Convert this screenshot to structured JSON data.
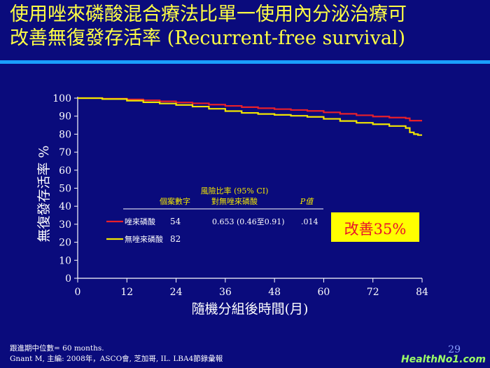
{
  "slide": {
    "title_line1": "使用唑來磷酸混合療法比單一使用內分泌治療可",
    "title_line2": "改善無復發存活率 (Recurrent-free survival)",
    "footnote1": "跟進期中位數= 60 months.",
    "footnote2": "Gnant M, 主編: 2008年，ASCO會, 芝加哥, IL. LBA4節錄彙報",
    "page_number": "29",
    "watermark": "HealthNo1.com"
  },
  "chart_data": {
    "type": "line",
    "title": "",
    "xlabel": "隨機分組後時間(月)",
    "ylabel": "無復發存活率 %",
    "xlim": [
      0,
      84
    ],
    "ylim": [
      0,
      100
    ],
    "xticks": [
      "0",
      "12",
      "24",
      "36",
      "48",
      "60",
      "72",
      "84"
    ],
    "yticks": [
      "0",
      "10",
      "20",
      "30",
      "40",
      "50",
      "60",
      "70",
      "80",
      "90",
      "100"
    ],
    "grid": false,
    "series": [
      {
        "name": "唑來磷酸",
        "color": "#e8202a",
        "x": [
          0,
          6,
          12,
          16,
          20,
          24,
          28,
          32,
          36,
          40,
          44,
          48,
          52,
          56,
          60,
          64,
          68,
          72,
          76,
          80,
          81,
          84
        ],
        "y": [
          100,
          99.7,
          99.3,
          98.8,
          98.2,
          97.6,
          97.1,
          96.4,
          95.7,
          95,
          94.4,
          93.9,
          93.4,
          92.9,
          92.1,
          91.3,
          90.5,
          89.8,
          89.2,
          88.8,
          87.5,
          87.5
        ]
      },
      {
        "name": "無唑來磷酸",
        "color": "#f2e600",
        "x": [
          0,
          6,
          12,
          16,
          20,
          24,
          28,
          32,
          36,
          40,
          44,
          48,
          52,
          56,
          60,
          64,
          68,
          72,
          76,
          80,
          81,
          82,
          83,
          84
        ],
        "y": [
          100,
          99.5,
          98.6,
          97.7,
          97,
          96.2,
          95.3,
          94.1,
          92.8,
          91.8,
          91.2,
          90.7,
          90.2,
          89.6,
          88.5,
          87.3,
          86.3,
          85.5,
          84.5,
          83.4,
          81,
          80,
          79.5,
          79.5
        ]
      }
    ],
    "risk_table": {
      "header_hr_line1": "風險比率 (95% CI)",
      "header_hr_line2": "對無唑來磷酸",
      "header_events": "個案數字",
      "header_p": "P值",
      "rows": [
        {
          "label": "唑來磷酸",
          "events": "54",
          "hr": "0.653 (0.46至0.91)",
          "p": ".014"
        },
        {
          "label": "無唑來磷酸",
          "events": "82",
          "hr": "",
          "p": ""
        }
      ]
    },
    "annotation": "改善35%"
  }
}
